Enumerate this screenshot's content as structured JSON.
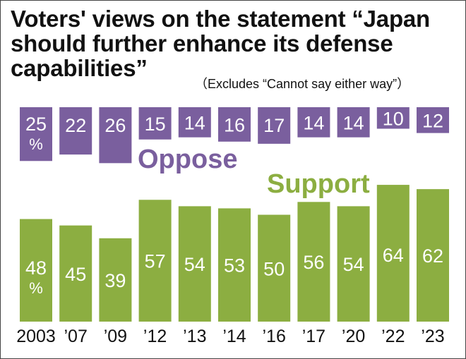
{
  "title_lines": [
    "Voters' views on the statement “Japan",
    "should further enhance its defense",
    "capabilities”"
  ],
  "note": "（Excludes “Cannot say either way”）",
  "colors": {
    "oppose": "#7a5f9e",
    "support": "#8cae41"
  },
  "chart_data": {
    "type": "bar",
    "categories": [
      "2003",
      "’07",
      "’09",
      "’12",
      "’13",
      "’14",
      "’16",
      "’17",
      "’20",
      "’22",
      "’23"
    ],
    "series": [
      {
        "name": "Oppose",
        "values": [
          25,
          22,
          26,
          15,
          14,
          16,
          17,
          14,
          14,
          10,
          12
        ]
      },
      {
        "name": "Support",
        "values": [
          48,
          45,
          39,
          57,
          54,
          53,
          50,
          56,
          54,
          64,
          62
        ]
      }
    ],
    "unit": "%"
  }
}
